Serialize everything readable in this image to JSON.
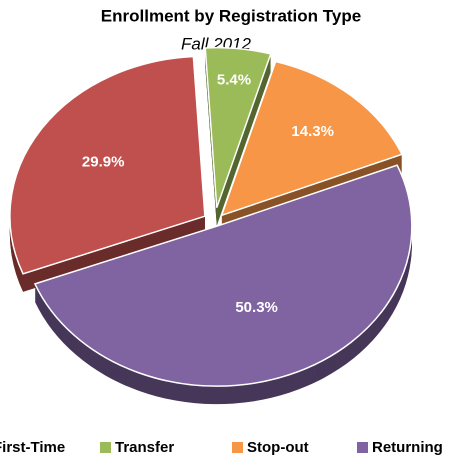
{
  "chart_data": {
    "type": "pie",
    "title": "Enrollment by Registration Type",
    "subtitle": "Fall 2012",
    "categories": [
      "First-Time",
      "Transfer",
      "Stop-out",
      "Returning"
    ],
    "values": [
      29.9,
      5.4,
      14.3,
      50.3
    ],
    "value_labels": [
      "29.9%",
      "5.4%",
      "14.3%",
      "50.3%"
    ],
    "colors": [
      "#c0504d",
      "#9bbb59",
      "#f79646",
      "#8064a2"
    ],
    "legend": "bottom"
  }
}
